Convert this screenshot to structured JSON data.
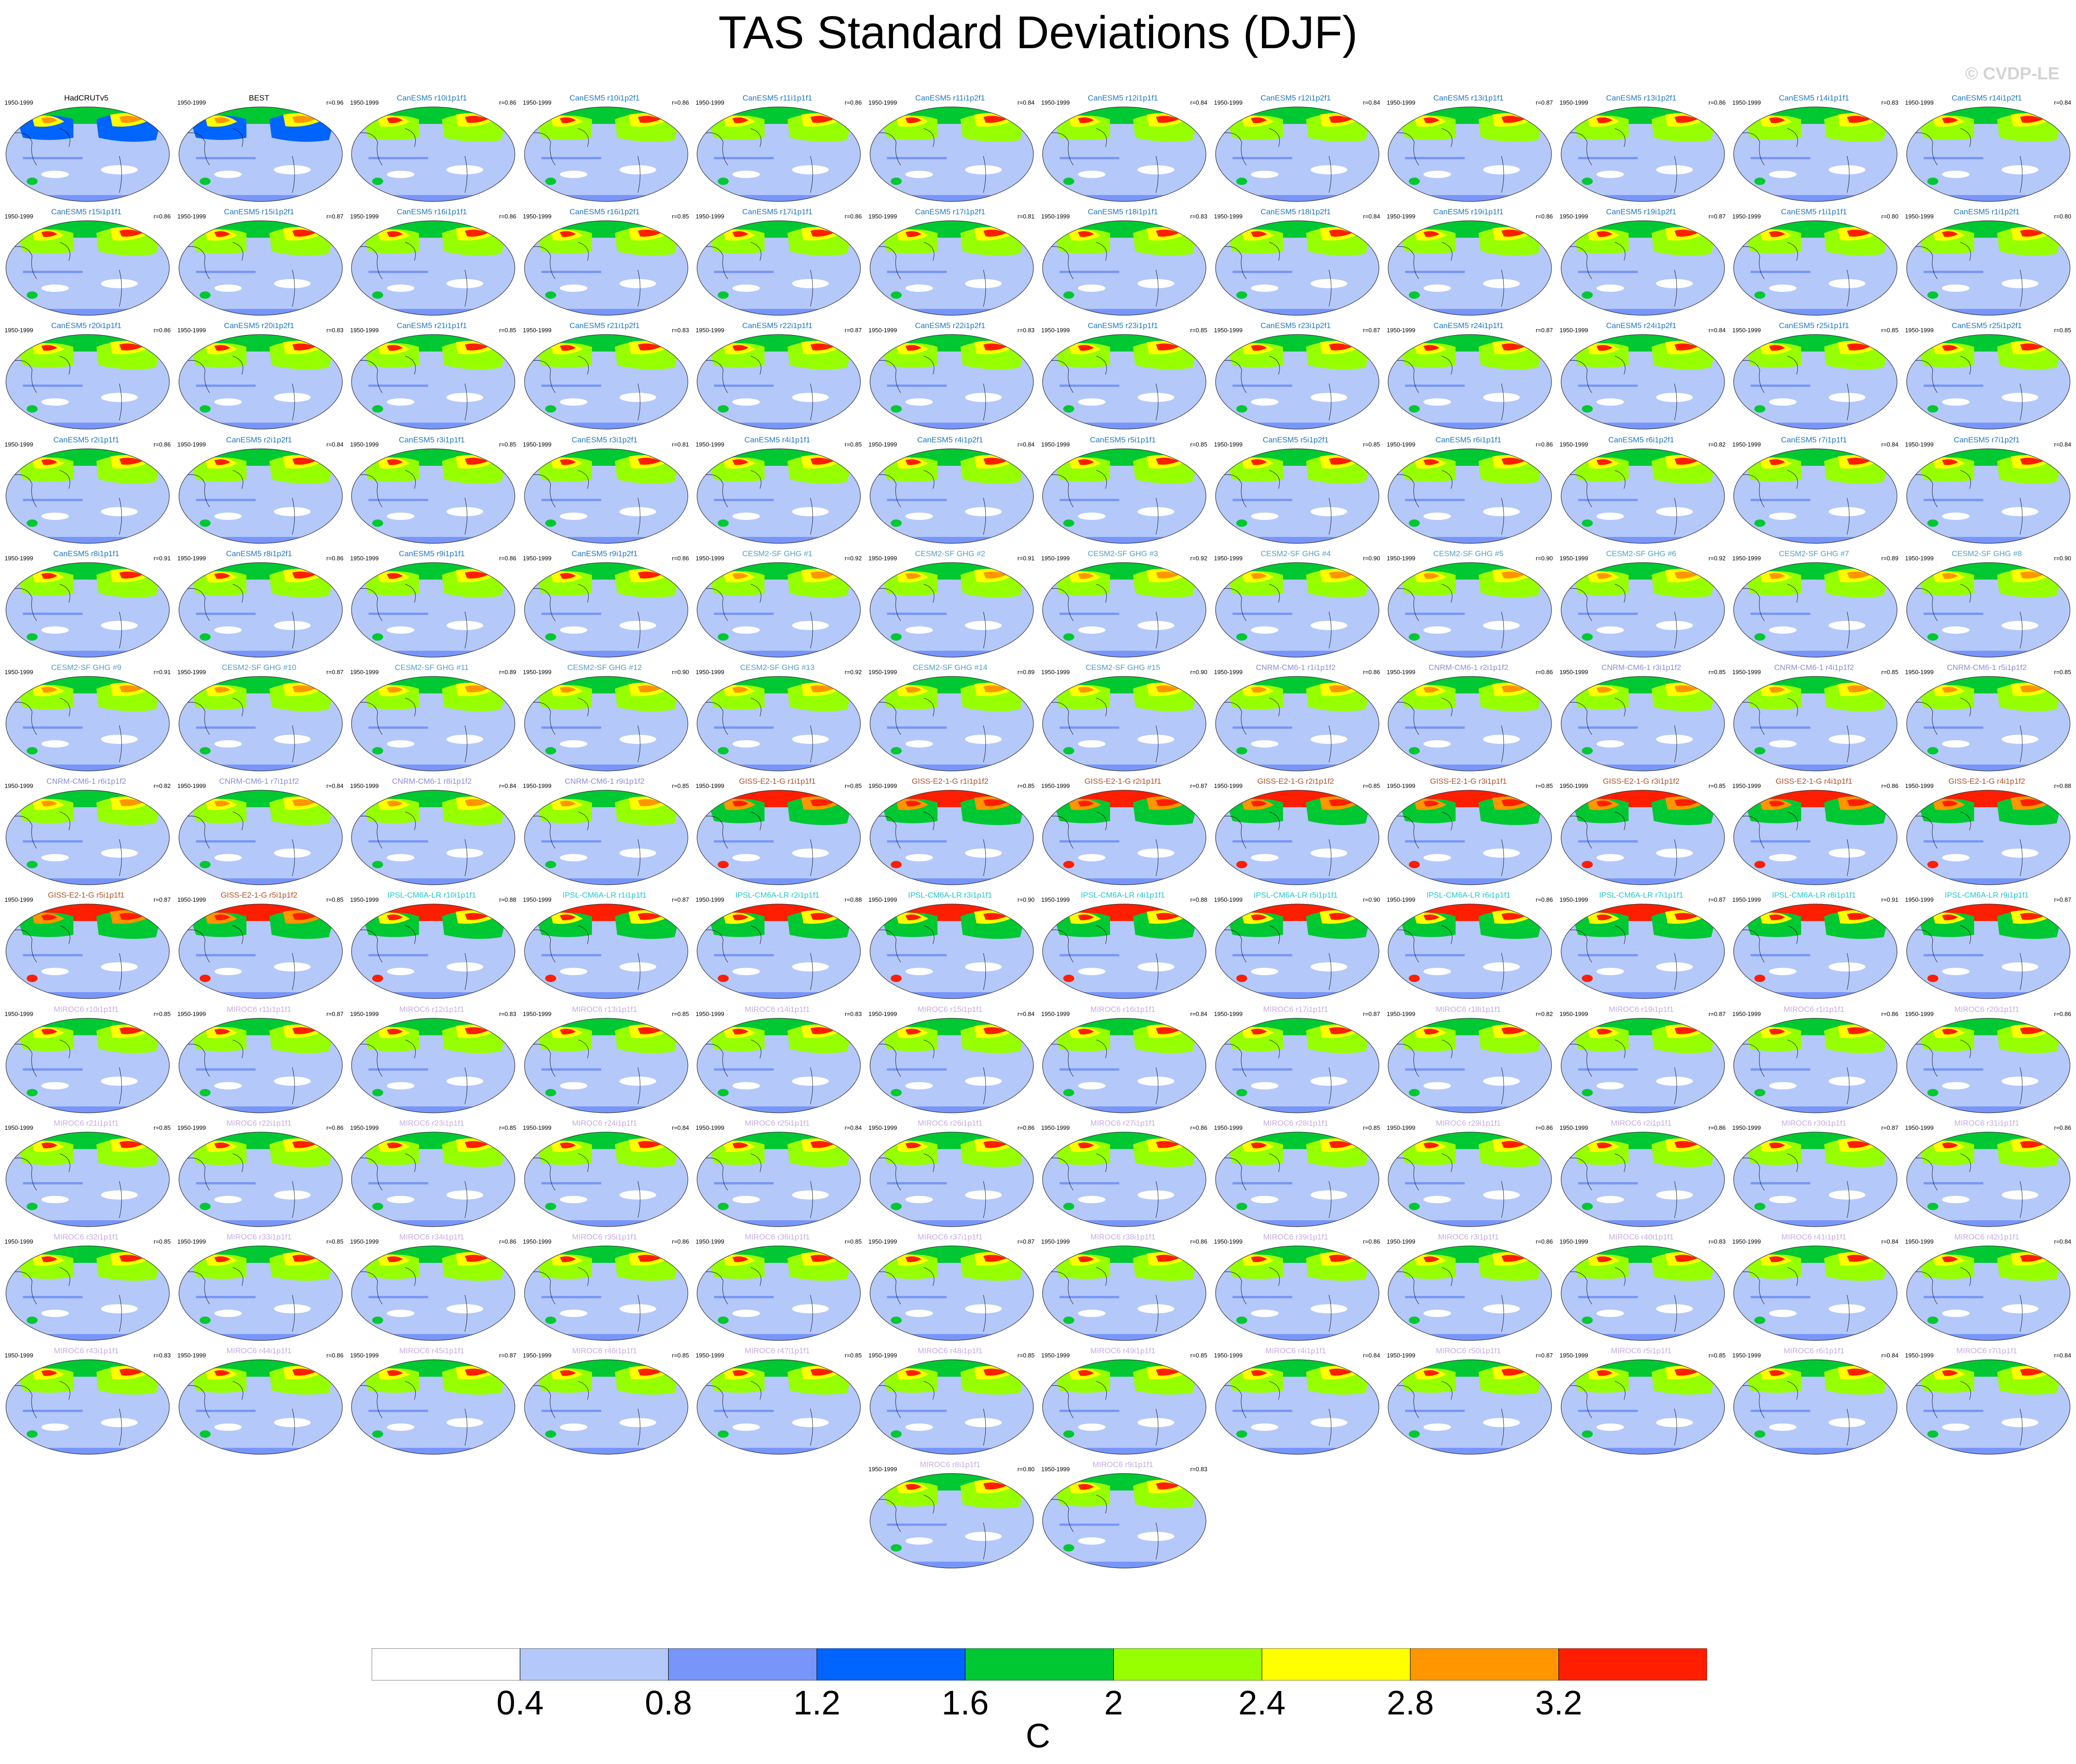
{
  "title": "TAS Standard Deviations (DJF)",
  "watermark": "© CVDP-LE",
  "period": "1950-1999",
  "colorbar": {
    "colors": [
      "#ffffff",
      "#b4c8fa",
      "#7896fa",
      "#0064ff",
      "#00c832",
      "#96ff00",
      "#ffff00",
      "#ff9600",
      "#ff1e00"
    ],
    "tick_labels": [
      "0.4",
      "0.8",
      "1.2",
      "1.6",
      "2",
      "2.4",
      "2.8",
      "3.2"
    ],
    "units": "C"
  },
  "panels": [
    {
      "name": "HadCRUTv5",
      "r": "",
      "color": "#000000",
      "style": "obs"
    },
    {
      "name": "BEST",
      "r": "r=0.96",
      "color": "#000000",
      "style": "obs"
    },
    {
      "name": "CanESM5 r10i1p1f1",
      "r": "r=0.86",
      "color": "#1e78c8",
      "style": "can"
    },
    {
      "name": "CanESM5 r10i1p2f1",
      "r": "r=0.86",
      "color": "#1e78c8",
      "style": "can"
    },
    {
      "name": "CanESM5 r11i1p1f1",
      "r": "r=0.86",
      "color": "#1e78c8",
      "style": "can"
    },
    {
      "name": "CanESM5 r11i1p2f1",
      "r": "r=0.84",
      "color": "#1e78c8",
      "style": "can"
    },
    {
      "name": "CanESM5 r12i1p1f1",
      "r": "r=0.84",
      "color": "#1e78c8",
      "style": "can"
    },
    {
      "name": "CanESM5 r12i1p2f1",
      "r": "r=0.84",
      "color": "#1e78c8",
      "style": "can"
    },
    {
      "name": "CanESM5 r13i1p1f1",
      "r": "r=0.87",
      "color": "#1e78c8",
      "style": "can"
    },
    {
      "name": "CanESM5 r13i1p2f1",
      "r": "r=0.86",
      "color": "#1e78c8",
      "style": "can"
    },
    {
      "name": "CanESM5 r14i1p1f1",
      "r": "r=0.83",
      "color": "#1e78c8",
      "style": "can"
    },
    {
      "name": "CanESM5 r14i1p2f1",
      "r": "r=0.84",
      "color": "#1e78c8",
      "style": "can"
    },
    {
      "name": "CanESM5 r15i1p1f1",
      "r": "r=0.86",
      "color": "#1e78c8",
      "style": "can"
    },
    {
      "name": "CanESM5 r15i1p2f1",
      "r": "r=0.87",
      "color": "#1e78c8",
      "style": "can"
    },
    {
      "name": "CanESM5 r16i1p1f1",
      "r": "r=0.86",
      "color": "#1e78c8",
      "style": "can"
    },
    {
      "name": "CanESM5 r16i1p2f1",
      "r": "r=0.85",
      "color": "#1e78c8",
      "style": "can"
    },
    {
      "name": "CanESM5 r17i1p1f1",
      "r": "r=0.86",
      "color": "#1e78c8",
      "style": "can"
    },
    {
      "name": "CanESM5 r17i1p2f1",
      "r": "r=0.81",
      "color": "#1e78c8",
      "style": "can"
    },
    {
      "name": "CanESM5 r18i1p1f1",
      "r": "r=0.83",
      "color": "#1e78c8",
      "style": "can"
    },
    {
      "name": "CanESM5 r18i1p2f1",
      "r": "r=0.84",
      "color": "#1e78c8",
      "style": "can"
    },
    {
      "name": "CanESM5 r19i1p1f1",
      "r": "r=0.86",
      "color": "#1e78c8",
      "style": "can"
    },
    {
      "name": "CanESM5 r19i1p2f1",
      "r": "r=0.87",
      "color": "#1e78c8",
      "style": "can"
    },
    {
      "name": "CanESM5 r1i1p1f1",
      "r": "r=0.80",
      "color": "#1e78c8",
      "style": "can"
    },
    {
      "name": "CanESM5 r1i1p2f1",
      "r": "r=0.80",
      "color": "#1e78c8",
      "style": "can"
    },
    {
      "name": "CanESM5 r20i1p1f1",
      "r": "r=0.86",
      "color": "#1e78c8",
      "style": "can"
    },
    {
      "name": "CanESM5 r20i1p2f1",
      "r": "r=0.83",
      "color": "#1e78c8",
      "style": "can"
    },
    {
      "name": "CanESM5 r21i1p1f1",
      "r": "r=0.85",
      "color": "#1e78c8",
      "style": "can"
    },
    {
      "name": "CanESM5 r21i1p2f1",
      "r": "r=0.83",
      "color": "#1e78c8",
      "style": "can"
    },
    {
      "name": "CanESM5 r22i1p1f1",
      "r": "r=0.87",
      "color": "#1e78c8",
      "style": "can"
    },
    {
      "name": "CanESM5 r22i1p2f1",
      "r": "r=0.83",
      "color": "#1e78c8",
      "style": "can"
    },
    {
      "name": "CanESM5 r23i1p1f1",
      "r": "r=0.85",
      "color": "#1e78c8",
      "style": "can"
    },
    {
      "name": "CanESM5 r23i1p2f1",
      "r": "r=0.87",
      "color": "#1e78c8",
      "style": "can"
    },
    {
      "name": "CanESM5 r24i1p1f1",
      "r": "r=0.87",
      "color": "#1e78c8",
      "style": "can"
    },
    {
      "name": "CanESM5 r24i1p2f1",
      "r": "r=0.84",
      "color": "#1e78c8",
      "style": "can"
    },
    {
      "name": "CanESM5 r25i1p1f1",
      "r": "r=0.85",
      "color": "#1e78c8",
      "style": "can"
    },
    {
      "name": "CanESM5 r25i1p2f1",
      "r": "r=0.85",
      "color": "#1e78c8",
      "style": "can"
    },
    {
      "name": "CanESM5 r2i1p1f1",
      "r": "r=0.86",
      "color": "#1e78c8",
      "style": "can"
    },
    {
      "name": "CanESM5 r2i1p2f1",
      "r": "r=0.84",
      "color": "#1e78c8",
      "style": "can"
    },
    {
      "name": "CanESM5 r3i1p1f1",
      "r": "r=0.85",
      "color": "#1e78c8",
      "style": "can"
    },
    {
      "name": "CanESM5 r3i1p2f1",
      "r": "r=0.81",
      "color": "#1e78c8",
      "style": "can"
    },
    {
      "name": "CanESM5 r4i1p1f1",
      "r": "r=0.85",
      "color": "#1e78c8",
      "style": "can"
    },
    {
      "name": "CanESM5 r4i1p2f1",
      "r": "r=0.84",
      "color": "#1e78c8",
      "style": "can"
    },
    {
      "name": "CanESM5 r5i1p1f1",
      "r": "r=0.85",
      "color": "#1e78c8",
      "style": "can"
    },
    {
      "name": "CanESM5 r5i1p2f1",
      "r": "r=0.85",
      "color": "#1e78c8",
      "style": "can"
    },
    {
      "name": "CanESM5 r6i1p1f1",
      "r": "r=0.86",
      "color": "#1e78c8",
      "style": "can"
    },
    {
      "name": "CanESM5 r6i1p2f1",
      "r": "r=0.82",
      "color": "#1e78c8",
      "style": "can"
    },
    {
      "name": "CanESM5 r7i1p1f1",
      "r": "r=0.84",
      "color": "#1e78c8",
      "style": "can"
    },
    {
      "name": "CanESM5 r7i1p2f1",
      "r": "r=0.84",
      "color": "#1e78c8",
      "style": "can"
    },
    {
      "name": "CanESM5 r8i1p1f1",
      "r": "r=0.91",
      "color": "#1e78c8",
      "style": "can"
    },
    {
      "name": "CanESM5 r8i1p2f1",
      "r": "r=0.86",
      "color": "#1e78c8",
      "style": "can"
    },
    {
      "name": "CanESM5 r9i1p1f1",
      "r": "r=0.86",
      "color": "#1e78c8",
      "style": "can"
    },
    {
      "name": "CanESM5 r9i1p2f1",
      "r": "r=0.86",
      "color": "#1e78c8",
      "style": "can"
    },
    {
      "name": "CESM2-SF GHG #1",
      "r": "r=0.92",
      "color": "#50a0c8",
      "style": "cesm"
    },
    {
      "name": "CESM2-SF GHG #2",
      "r": "r=0.91",
      "color": "#50a0c8",
      "style": "cesm"
    },
    {
      "name": "CESM2-SF GHG #3",
      "r": "r=0.92",
      "color": "#50a0c8",
      "style": "cesm"
    },
    {
      "name": "CESM2-SF GHG #4",
      "r": "r=0.90",
      "color": "#50a0c8",
      "style": "cesm"
    },
    {
      "name": "CESM2-SF GHG #5",
      "r": "r=0.90",
      "color": "#50a0c8",
      "style": "cesm"
    },
    {
      "name": "CESM2-SF GHG #6",
      "r": "r=0.92",
      "color": "#50a0c8",
      "style": "cesm"
    },
    {
      "name": "CESM2-SF GHG #7",
      "r": "r=0.89",
      "color": "#50a0c8",
      "style": "cesm"
    },
    {
      "name": "CESM2-SF GHG #8",
      "r": "r=0.90",
      "color": "#50a0c8",
      "style": "cesm"
    },
    {
      "name": "CESM2-SF GHG #9",
      "r": "r=0.91",
      "color": "#50a0c8",
      "style": "cesm"
    },
    {
      "name": "CESM2-SF GHG #10",
      "r": "r=0.87",
      "color": "#50a0c8",
      "style": "cesm"
    },
    {
      "name": "CESM2-SF GHG #11",
      "r": "r=0.89",
      "color": "#50a0c8",
      "style": "cesm"
    },
    {
      "name": "CESM2-SF GHG #12",
      "r": "r=0.90",
      "color": "#50a0c8",
      "style": "cesm"
    },
    {
      "name": "CESM2-SF GHG #13",
      "r": "r=0.92",
      "color": "#50a0c8",
      "style": "cesm"
    },
    {
      "name": "CESM2-SF GHG #14",
      "r": "r=0.89",
      "color": "#50a0c8",
      "style": "cesm"
    },
    {
      "name": "CESM2-SF GHG #15",
      "r": "r=0.90",
      "color": "#50a0c8",
      "style": "cesm"
    },
    {
      "name": "CNRM-CM6-1 r1i1p1f2",
      "r": "r=0.86",
      "color": "#8c8cdc",
      "style": "cnrm"
    },
    {
      "name": "CNRM-CM6-1 r2i1p1f2",
      "r": "r=0.86",
      "color": "#8c8cdc",
      "style": "cnrm"
    },
    {
      "name": "CNRM-CM6-1 r3i1p1f2",
      "r": "r=0.85",
      "color": "#8c8cdc",
      "style": "cnrm"
    },
    {
      "name": "CNRM-CM6-1 r4i1p1f2",
      "r": "r=0.85",
      "color": "#8c8cdc",
      "style": "cnrm"
    },
    {
      "name": "CNRM-CM6-1 r5i1p1f2",
      "r": "r=0.85",
      "color": "#8c8cdc",
      "style": "cnrm"
    },
    {
      "name": "CNRM-CM6-1 r6i1p1f2",
      "r": "r=0.82",
      "color": "#8c8cdc",
      "style": "cnrm"
    },
    {
      "name": "CNRM-CM6-1 r7i1p1f2",
      "r": "r=0.84",
      "color": "#8c8cdc",
      "style": "cnrm"
    },
    {
      "name": "CNRM-CM6-1 r8i1p1f2",
      "r": "r=0.84",
      "color": "#8c8cdc",
      "style": "cnrm"
    },
    {
      "name": "CNRM-CM6-1 r9i1p1f2",
      "r": "r=0.85",
      "color": "#8c8cdc",
      "style": "cnrm"
    },
    {
      "name": "GISS-E2-1-G r1i1p1f1",
      "r": "r=0.85",
      "color": "#b45028",
      "style": "giss"
    },
    {
      "name": "GISS-E2-1-G r1i1p1f2",
      "r": "r=0.85",
      "color": "#b45028",
      "style": "giss"
    },
    {
      "name": "GISS-E2-1-G r2i1p1f1",
      "r": "r=0.87",
      "color": "#b45028",
      "style": "giss"
    },
    {
      "name": "GISS-E2-1-G r2i1p1f2",
      "r": "r=0.85",
      "color": "#b45028",
      "style": "giss"
    },
    {
      "name": "GISS-E2-1-G r3i1p1f1",
      "r": "r=0.85",
      "color": "#b45028",
      "style": "giss"
    },
    {
      "name": "GISS-E2-1-G r3i1p1f2",
      "r": "r=0.85",
      "color": "#b45028",
      "style": "giss"
    },
    {
      "name": "GISS-E2-1-G r4i1p1f1",
      "r": "r=0.86",
      "color": "#b45028",
      "style": "giss"
    },
    {
      "name": "GISS-E2-1-G r4i1p1f2",
      "r": "r=0.88",
      "color": "#b45028",
      "style": "giss"
    },
    {
      "name": "GISS-E2-1-G r5i1p1f1",
      "r": "r=0.87",
      "color": "#b45028",
      "style": "giss"
    },
    {
      "name": "GISS-E2-1-G r5i1p1f2",
      "r": "r=0.85",
      "color": "#b45028",
      "style": "giss"
    },
    {
      "name": "IPSL-CM6A-LR r10i1p1f1",
      "r": "r=0.88",
      "color": "#1ec8c8",
      "style": "ipsl"
    },
    {
      "name": "IPSL-CM6A-LR r1i1p1f1",
      "r": "r=0.87",
      "color": "#1ec8c8",
      "style": "ipsl"
    },
    {
      "name": "IPSL-CM6A-LR r2i1p1f1",
      "r": "r=0.88",
      "color": "#1ec8c8",
      "style": "ipsl"
    },
    {
      "name": "IPSL-CM6A-LR r3i1p1f1",
      "r": "r=0.90",
      "color": "#1ec8c8",
      "style": "ipsl"
    },
    {
      "name": "IPSL-CM6A-LR r4i1p1f1",
      "r": "r=0.88",
      "color": "#1ec8c8",
      "style": "ipsl"
    },
    {
      "name": "IPSL-CM6A-LR r5i1p1f1",
      "r": "r=0.90",
      "color": "#1ec8c8",
      "style": "ipsl"
    },
    {
      "name": "IPSL-CM6A-LR r6i1p1f1",
      "r": "r=0.86",
      "color": "#1ec8c8",
      "style": "ipsl"
    },
    {
      "name": "IPSL-CM6A-LR r7i1p1f1",
      "r": "r=0.87",
      "color": "#1ec8c8",
      "style": "ipsl"
    },
    {
      "name": "IPSL-CM6A-LR r8i1p1f1",
      "r": "r=0.91",
      "color": "#1ec8c8",
      "style": "ipsl"
    },
    {
      "name": "IPSL-CM6A-LR r9i1p1f1",
      "r": "r=0.87",
      "color": "#1ec8c8",
      "style": "ipsl"
    },
    {
      "name": "MIROC6 r10i1p1f1",
      "r": "r=0.85",
      "color": "#c8aae6",
      "style": "miroc"
    },
    {
      "name": "MIROC6 r11i1p1f1",
      "r": "r=0.87",
      "color": "#c8aae6",
      "style": "miroc"
    },
    {
      "name": "MIROC6 r12i1p1f1",
      "r": "r=0.83",
      "color": "#c8aae6",
      "style": "miroc"
    },
    {
      "name": "MIROC6 r13i1p1f1",
      "r": "r=0.85",
      "color": "#c8aae6",
      "style": "miroc"
    },
    {
      "name": "MIROC6 r14i1p1f1",
      "r": "r=0.83",
      "color": "#c8aae6",
      "style": "miroc"
    },
    {
      "name": "MIROC6 r15i1p1f1",
      "r": "r=0.84",
      "color": "#c8aae6",
      "style": "miroc"
    },
    {
      "name": "MIROC6 r16i1p1f1",
      "r": "r=0.84",
      "color": "#c8aae6",
      "style": "miroc"
    },
    {
      "name": "MIROC6 r17i1p1f1",
      "r": "r=0.87",
      "color": "#c8aae6",
      "style": "miroc"
    },
    {
      "name": "MIROC6 r18i1p1f1",
      "r": "r=0.82",
      "color": "#c8aae6",
      "style": "miroc"
    },
    {
      "name": "MIROC6 r19i1p1f1",
      "r": "r=0.87",
      "color": "#c8aae6",
      "style": "miroc"
    },
    {
      "name": "MIROC6 r1i1p1f1",
      "r": "r=0.86",
      "color": "#c8aae6",
      "style": "miroc"
    },
    {
      "name": "MIROC6 r20i1p1f1",
      "r": "r=0.86",
      "color": "#c8aae6",
      "style": "miroc"
    },
    {
      "name": "MIROC6 r21i1p1f1",
      "r": "r=0.85",
      "color": "#c8aae6",
      "style": "miroc"
    },
    {
      "name": "MIROC6 r22i1p1f1",
      "r": "r=0.86",
      "color": "#c8aae6",
      "style": "miroc"
    },
    {
      "name": "MIROC6 r23i1p1f1",
      "r": "r=0.85",
      "color": "#c8aae6",
      "style": "miroc"
    },
    {
      "name": "MIROC6 r24i1p1f1",
      "r": "r=0.84",
      "color": "#c8aae6",
      "style": "miroc"
    },
    {
      "name": "MIROC6 r25i1p1f1",
      "r": "r=0.84",
      "color": "#c8aae6",
      "style": "miroc"
    },
    {
      "name": "MIROC6 r26i1p1f1",
      "r": "r=0.86",
      "color": "#c8aae6",
      "style": "miroc"
    },
    {
      "name": "MIROC6 r27i1p1f1",
      "r": "r=0.86",
      "color": "#c8aae6",
      "style": "miroc"
    },
    {
      "name": "MIROC6 r28i1p1f1",
      "r": "r=0.85",
      "color": "#c8aae6",
      "style": "miroc"
    },
    {
      "name": "MIROC6 r29i1p1f1",
      "r": "r=0.86",
      "color": "#c8aae6",
      "style": "miroc"
    },
    {
      "name": "MIROC6 r2i1p1f1",
      "r": "r=0.86",
      "color": "#c8aae6",
      "style": "miroc"
    },
    {
      "name": "MIROC6 r30i1p1f1",
      "r": "r=0.87",
      "color": "#c8aae6",
      "style": "miroc"
    },
    {
      "name": "MIROC6 r31i1p1f1",
      "r": "r=0.86",
      "color": "#c8aae6",
      "style": "miroc"
    },
    {
      "name": "MIROC6 r32i1p1f1",
      "r": "r=0.85",
      "color": "#c8aae6",
      "style": "miroc"
    },
    {
      "name": "MIROC6 r33i1p1f1",
      "r": "r=0.85",
      "color": "#c8aae6",
      "style": "miroc"
    },
    {
      "name": "MIROC6 r34i1p1f1",
      "r": "r=0.86",
      "color": "#c8aae6",
      "style": "miroc"
    },
    {
      "name": "MIROC6 r35i1p1f1",
      "r": "r=0.86",
      "color": "#c8aae6",
      "style": "miroc"
    },
    {
      "name": "MIROC6 r36i1p1f1",
      "r": "r=0.85",
      "color": "#c8aae6",
      "style": "miroc"
    },
    {
      "name": "MIROC6 r37i1p1f1",
      "r": "r=0.87",
      "color": "#c8aae6",
      "style": "miroc"
    },
    {
      "name": "MIROC6 r38i1p1f1",
      "r": "r=0.86",
      "color": "#c8aae6",
      "style": "miroc"
    },
    {
      "name": "MIROC6 r39i1p1f1",
      "r": "r=0.86",
      "color": "#c8aae6",
      "style": "miroc"
    },
    {
      "name": "MIROC6 r3i1p1f1",
      "r": "r=0.86",
      "color": "#c8aae6",
      "style": "miroc"
    },
    {
      "name": "MIROC6 r40i1p1f1",
      "r": "r=0.83",
      "color": "#c8aae6",
      "style": "miroc"
    },
    {
      "name": "MIROC6 r41i1p1f1",
      "r": "r=0.84",
      "color": "#c8aae6",
      "style": "miroc"
    },
    {
      "name": "MIROC6 r42i1p1f1",
      "r": "r=0.84",
      "color": "#c8aae6",
      "style": "miroc"
    },
    {
      "name": "MIROC6 r43i1p1f1",
      "r": "r=0.83",
      "color": "#c8aae6",
      "style": "miroc"
    },
    {
      "name": "MIROC6 r44i1p1f1",
      "r": "r=0.86",
      "color": "#c8aae6",
      "style": "miroc"
    },
    {
      "name": "MIROC6 r45i1p1f1",
      "r": "r=0.87",
      "color": "#c8aae6",
      "style": "miroc"
    },
    {
      "name": "MIROC6 r46i1p1f1",
      "r": "r=0.85",
      "color": "#c8aae6",
      "style": "miroc"
    },
    {
      "name": "MIROC6 r47i1p1f1",
      "r": "r=0.85",
      "color": "#c8aae6",
      "style": "miroc"
    },
    {
      "name": "MIROC6 r48i1p1f1",
      "r": "r=0.85",
      "color": "#c8aae6",
      "style": "miroc"
    },
    {
      "name": "MIROC6 r49i1p1f1",
      "r": "r=0.85",
      "color": "#c8aae6",
      "style": "miroc"
    },
    {
      "name": "MIROC6 r4i1p1f1",
      "r": "r=0.84",
      "color": "#c8aae6",
      "style": "miroc"
    },
    {
      "name": "MIROC6 r50i1p1f1",
      "r": "r=0.87",
      "color": "#c8aae6",
      "style": "miroc"
    },
    {
      "name": "MIROC6 r5i1p1f1",
      "r": "r=0.85",
      "color": "#c8aae6",
      "style": "miroc"
    },
    {
      "name": "MIROC6 r6i1p1f1",
      "r": "r=0.84",
      "color": "#c8aae6",
      "style": "miroc"
    },
    {
      "name": "MIROC6 r7i1p1f1",
      "r": "r=0.84",
      "color": "#c8aae6",
      "style": "miroc"
    },
    {
      "name": "MIROC6 r8i1p1f1",
      "r": "r=0.80",
      "color": "#c8aae6",
      "style": "miroc"
    },
    {
      "name": "MIROC6 r9i1p1f1",
      "r": "r=0.83",
      "color": "#c8aae6",
      "style": "miroc"
    }
  ]
}
